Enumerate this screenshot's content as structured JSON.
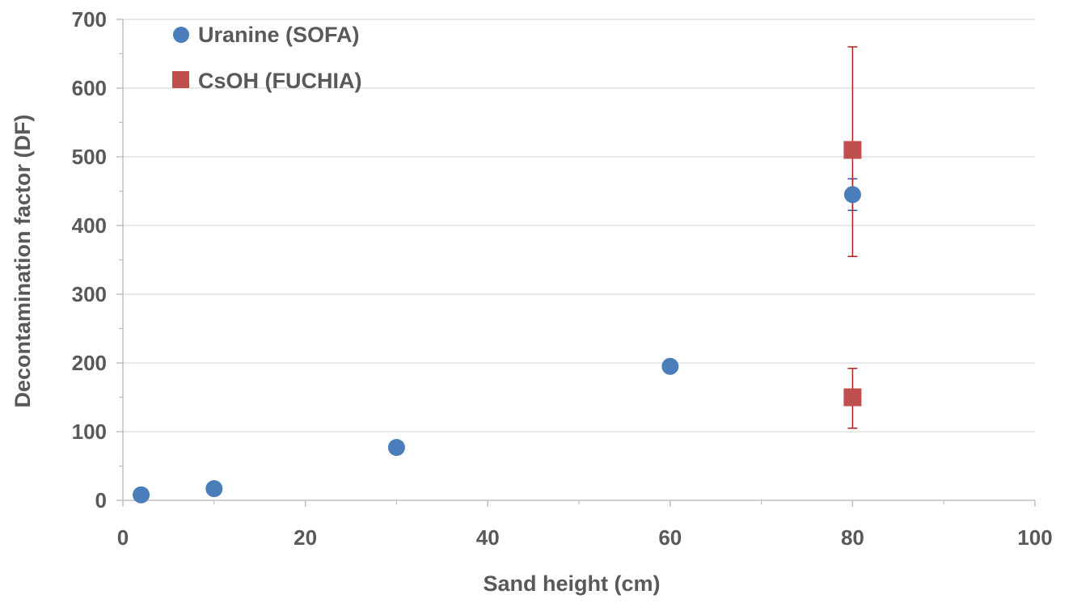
{
  "chart_data": {
    "type": "scatter",
    "title": "",
    "xlabel": "Sand height (cm)",
    "ylabel": "Decontamination factor (DF)",
    "xlim": [
      0,
      100
    ],
    "ylim": [
      0,
      700
    ],
    "x_ticks": [
      0,
      20,
      40,
      60,
      80,
      100
    ],
    "y_ticks": [
      0,
      100,
      200,
      300,
      400,
      500,
      600,
      700
    ],
    "x_minor_step": 10,
    "y_minor_step": 50,
    "grid": "horizontal-major",
    "legend_position": "top-left",
    "series": [
      {
        "name": "Uranine (SOFA)",
        "marker": "circle",
        "color": "#4a7ebb",
        "points": [
          {
            "x": 2,
            "y": 8
          },
          {
            "x": 10,
            "y": 17
          },
          {
            "x": 30,
            "y": 77
          },
          {
            "x": 60,
            "y": 195,
            "err_low": 190,
            "err_high": 198
          },
          {
            "x": 80,
            "y": 445,
            "err_low": 422,
            "err_high": 468
          }
        ]
      },
      {
        "name": "CsOH (FUCHIA)",
        "marker": "square",
        "color": "#c0504d",
        "points": [
          {
            "x": 80,
            "y": 150,
            "err_low": 105,
            "err_high": 192
          },
          {
            "x": 80,
            "y": 510,
            "err_low": 355,
            "err_high": 660
          }
        ]
      }
    ]
  }
}
